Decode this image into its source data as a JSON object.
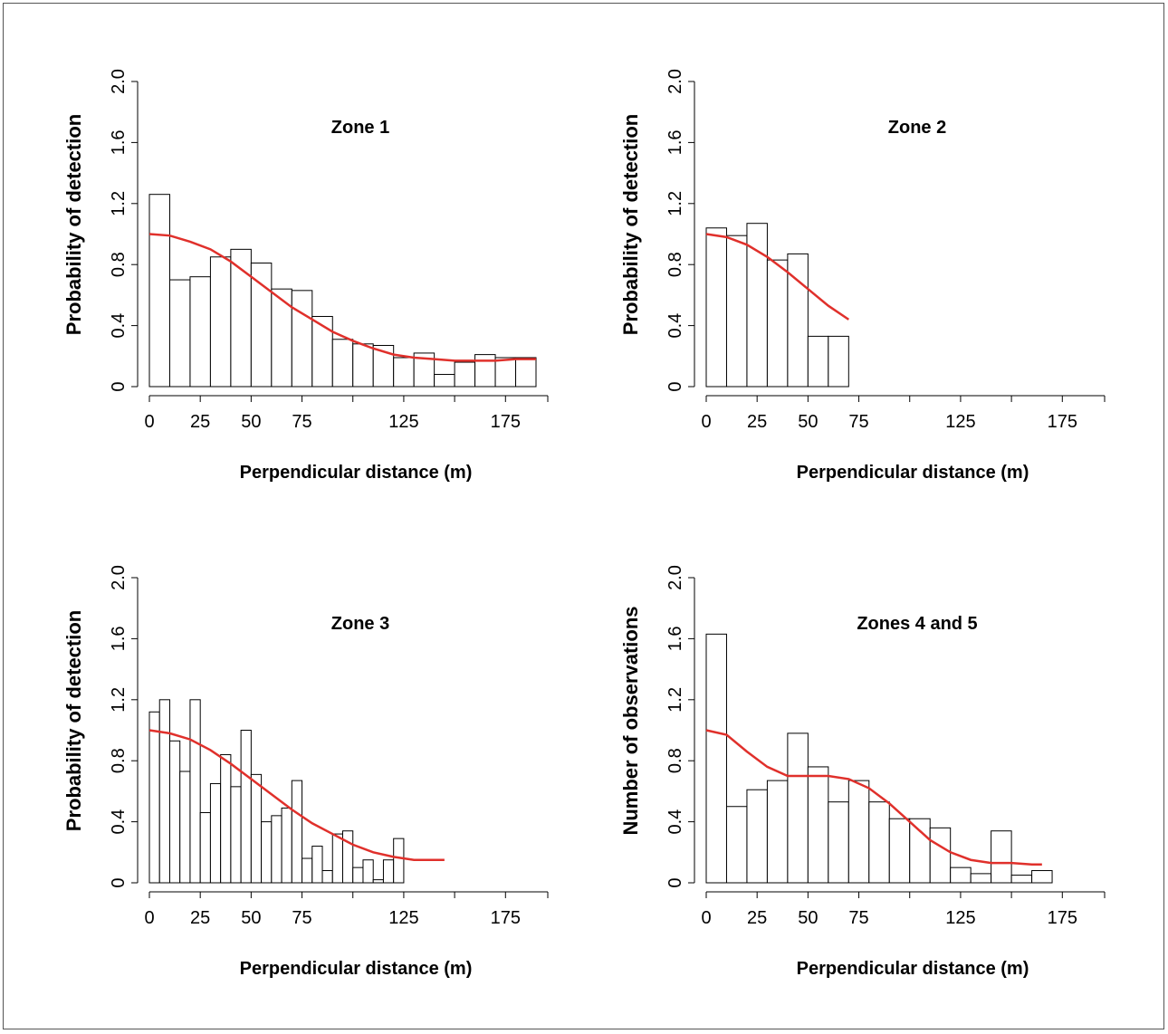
{
  "chart_data": [
    {
      "type": "bar",
      "title": "Zone 1",
      "xlabel": "Perpendicular distance (m)",
      "ylabel": "Probability of detection",
      "xticks": [
        0,
        25,
        50,
        75,
        125,
        175
      ],
      "yticks": [
        "0",
        "0.4",
        "0.8",
        "1.2",
        "1.6",
        "2.0"
      ],
      "xlim": [
        0,
        190
      ],
      "ylim": [
        0,
        2.0
      ],
      "bin_width": 10,
      "bars": [
        1.26,
        0.7,
        0.72,
        0.85,
        0.9,
        0.81,
        0.64,
        0.63,
        0.46,
        0.31,
        0.28,
        0.27,
        0.19,
        0.22,
        0.08,
        0.16,
        0.21,
        0.19,
        0.19
      ],
      "curve": {
        "name": "",
        "color": "#e0302b",
        "x": [
          0,
          10,
          20,
          30,
          40,
          50,
          60,
          70,
          80,
          90,
          100,
          110,
          120,
          130,
          140,
          150,
          160,
          170,
          180,
          190
        ],
        "y": [
          1.0,
          0.99,
          0.95,
          0.9,
          0.82,
          0.72,
          0.62,
          0.52,
          0.44,
          0.36,
          0.3,
          0.25,
          0.21,
          0.19,
          0.18,
          0.17,
          0.17,
          0.17,
          0.18,
          0.18
        ]
      }
    },
    {
      "type": "bar",
      "title": "Zone 2",
      "xlabel": "Perpendicular distance (m)",
      "ylabel": "Probability of detection",
      "xticks": [
        0,
        25,
        50,
        75,
        125,
        175
      ],
      "yticks": [
        "0",
        "0.4",
        "0.8",
        "1.2",
        "1.6",
        "2.0"
      ],
      "xlim": [
        0,
        190
      ],
      "ylim": [
        0,
        2.0
      ],
      "bin_width": 10,
      "bars": [
        1.04,
        0.99,
        1.07,
        0.83,
        0.87,
        0.33,
        0.33
      ],
      "curve": {
        "name": "",
        "color": "#e0302b",
        "x": [
          0,
          10,
          20,
          30,
          40,
          50,
          60,
          70
        ],
        "y": [
          1.0,
          0.98,
          0.93,
          0.85,
          0.75,
          0.64,
          0.53,
          0.44
        ]
      }
    },
    {
      "type": "bar",
      "title": "Zone 3",
      "xlabel": "Perpendicular distance (m)",
      "ylabel": "Probability of detection",
      "xticks": [
        0,
        25,
        50,
        75,
        125,
        175
      ],
      "yticks": [
        "0",
        "0.4",
        "0.8",
        "1.2",
        "1.6",
        "2.0"
      ],
      "xlim": [
        0,
        190
      ],
      "ylim": [
        0,
        2.0
      ],
      "bin_width": 5,
      "bars": [
        1.12,
        1.2,
        0.93,
        0.73,
        1.2,
        0.46,
        0.65,
        0.84,
        0.63,
        1.0,
        0.71,
        0.4,
        0.44,
        0.49,
        0.67,
        0.16,
        0.24,
        0.08,
        0.32,
        0.34,
        0.1,
        0.15,
        0.02,
        0.15,
        0.29
      ],
      "curve": {
        "name": "",
        "color": "#e0302b",
        "x": [
          0,
          10,
          20,
          30,
          40,
          50,
          60,
          70,
          80,
          90,
          100,
          110,
          120,
          130,
          140,
          145
        ],
        "y": [
          1.0,
          0.98,
          0.94,
          0.87,
          0.78,
          0.68,
          0.58,
          0.48,
          0.39,
          0.32,
          0.25,
          0.2,
          0.17,
          0.15,
          0.15,
          0.15
        ]
      }
    },
    {
      "type": "bar",
      "title": "Zones 4 and 5",
      "xlabel": "Perpendicular distance (m)",
      "ylabel": "Number of observations",
      "xticks": [
        0,
        25,
        50,
        75,
        125,
        175
      ],
      "yticks": [
        "0",
        "0.4",
        "0.8",
        "1.2",
        "1.6",
        "2.0"
      ],
      "xlim": [
        0,
        190
      ],
      "ylim": [
        0,
        2.0
      ],
      "bin_width": 10,
      "bars": [
        1.63,
        0.5,
        0.61,
        0.67,
        0.98,
        0.76,
        0.53,
        0.67,
        0.53,
        0.42,
        0.42,
        0.36,
        0.1,
        0.06,
        0.34,
        0.05,
        0.08
      ],
      "curve": {
        "name": "",
        "color": "#e0302b",
        "x": [
          0,
          10,
          20,
          30,
          40,
          50,
          60,
          70,
          80,
          90,
          100,
          110,
          120,
          130,
          140,
          150,
          160,
          165
        ],
        "y": [
          1.0,
          0.97,
          0.86,
          0.76,
          0.7,
          0.7,
          0.7,
          0.68,
          0.62,
          0.52,
          0.4,
          0.28,
          0.2,
          0.15,
          0.13,
          0.13,
          0.12,
          0.12
        ]
      }
    }
  ]
}
